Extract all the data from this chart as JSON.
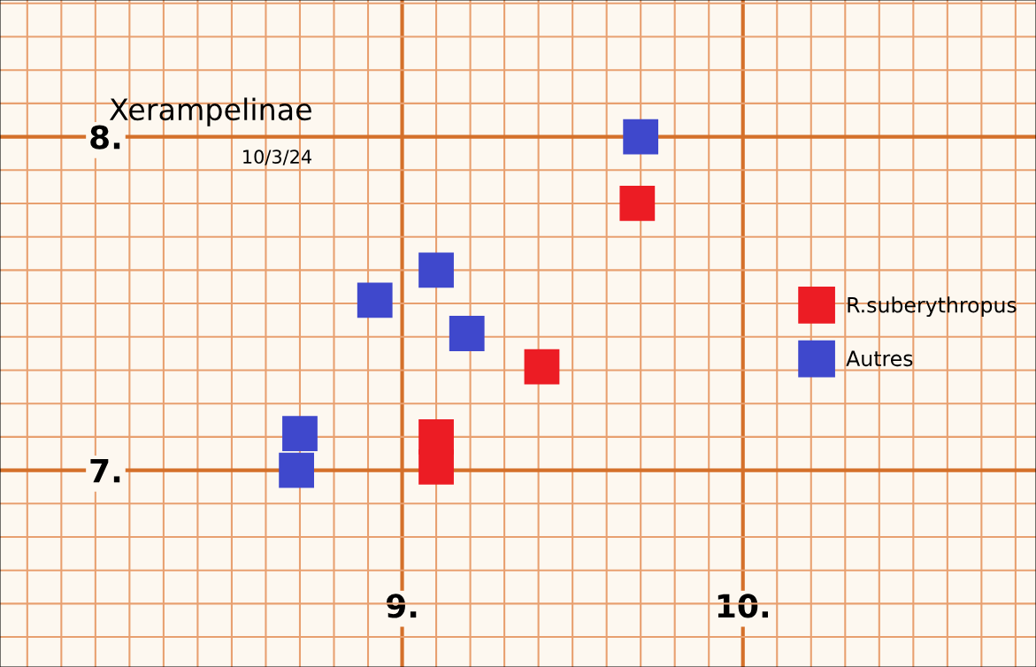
{
  "chart_data": {
    "type": "scatter",
    "title": "Xerampelinae",
    "subtitle": "10/3/24",
    "series": [
      {
        "name": "R.suberythropus",
        "color": "#ec1c24",
        "x": [
          9.69,
          9.41,
          9.1,
          9.1
        ],
        "values": [
          7.8,
          7.31,
          7.1,
          7.01
        ]
      },
      {
        "name": "Autres",
        "color": "#3f48cc",
        "x": [
          9.7,
          9.1,
          8.92,
          9.19,
          8.7,
          8.69
        ],
        "values": [
          8.0,
          7.6,
          7.51,
          7.41,
          7.11,
          7.0
        ]
      }
    ],
    "xlim": [
      7.82,
      10.86
    ],
    "ylim": [
      6.41,
      8.41
    ],
    "xticks": [
      {
        "value": 7.9,
        "label": null
      },
      {
        "value": 8.0,
        "label": null
      },
      {
        "value": 8.1,
        "label": null
      },
      {
        "value": 8.2,
        "label": null
      },
      {
        "value": 8.3,
        "label": null
      },
      {
        "value": 8.4,
        "label": null
      },
      {
        "value": 8.5,
        "label": null
      },
      {
        "value": 8.6,
        "label": null
      },
      {
        "value": 8.7,
        "label": null
      },
      {
        "value": 8.8,
        "label": null
      },
      {
        "value": 8.9,
        "label": null
      },
      {
        "value": 9,
        "label": "9."
      },
      {
        "value": 9.1,
        "label": null
      },
      {
        "value": 9.2,
        "label": null
      },
      {
        "value": 9.3,
        "label": null
      },
      {
        "value": 9.4,
        "label": null
      },
      {
        "value": 9.5,
        "label": null
      },
      {
        "value": 9.6,
        "label": null
      },
      {
        "value": 9.7,
        "label": null
      },
      {
        "value": 9.8,
        "label": null
      },
      {
        "value": 9.9,
        "label": null
      },
      {
        "value": 10,
        "label": "10."
      },
      {
        "value": 10.1,
        "label": null
      },
      {
        "value": 10.2,
        "label": null
      },
      {
        "value": 10.3,
        "label": null
      },
      {
        "value": 10.4,
        "label": null
      },
      {
        "value": 10.5,
        "label": null
      },
      {
        "value": 10.6,
        "label": null
      },
      {
        "value": 10.7,
        "label": null
      },
      {
        "value": 10.8,
        "label": null
      }
    ],
    "yticks": [
      {
        "value": 6.5,
        "label": null
      },
      {
        "value": 6.6,
        "label": null
      },
      {
        "value": 6.7,
        "label": null
      },
      {
        "value": 6.8,
        "label": null
      },
      {
        "value": 6.9,
        "label": null
      },
      {
        "value": 7,
        "label": "7."
      },
      {
        "value": 7.1,
        "label": null
      },
      {
        "value": 7.2,
        "label": null
      },
      {
        "value": 7.3,
        "label": null
      },
      {
        "value": 7.4,
        "label": null
      },
      {
        "value": 7.5,
        "label": null
      },
      {
        "value": 7.6,
        "label": null
      },
      {
        "value": 7.7,
        "label": null
      },
      {
        "value": 7.8,
        "label": null
      },
      {
        "value": 7.9,
        "label": null
      },
      {
        "value": 8,
        "label": "8."
      },
      {
        "value": 8.1,
        "label": null
      },
      {
        "value": 8.2,
        "label": null
      },
      {
        "value": 8.3,
        "label": null
      },
      {
        "value": 8.4,
        "label": null
      }
    ],
    "grid": true,
    "legend": "right",
    "marker": "square"
  }
}
